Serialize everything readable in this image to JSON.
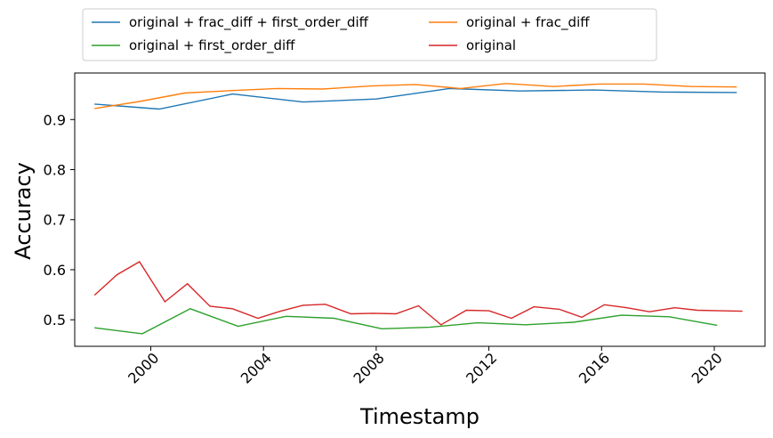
{
  "chart_data": {
    "type": "line",
    "xlabel": "Timestamp",
    "ylabel": "Accuracy",
    "xlim": [
      1997.3,
      2021.8
    ],
    "ylim": [
      0.447,
      0.993
    ],
    "x_ticks": [
      2000,
      2004,
      2008,
      2012,
      2016,
      2020
    ],
    "x_tick_labels": [
      "2000",
      "2004",
      "2008",
      "2012",
      "2016",
      "2020"
    ],
    "y_ticks": [
      0.5,
      0.6,
      0.7,
      0.8,
      0.9
    ],
    "y_tick_labels": [
      "0.5",
      "0.6",
      "0.7",
      "0.8",
      "0.9"
    ],
    "grid": false,
    "legend_position": "top, above plot, 2 columns",
    "series": [
      {
        "name": "original + frac_diff + first_order_diff",
        "color": "#1f77b4",
        "x": [
          1998.0,
          2000.3,
          2002.9,
          2005.4,
          2008.0,
          2010.6,
          2013.1,
          2015.7,
          2018.2,
          2020.8
        ],
        "y": [
          0.931,
          0.921,
          0.951,
          0.935,
          0.941,
          0.962,
          0.957,
          0.959,
          0.955,
          0.954
        ]
      },
      {
        "name": "original + frac_diff",
        "color": "#ff7f0e",
        "x": [
          1998.0,
          1999.6,
          2001.2,
          2002.9,
          2004.5,
          2006.1,
          2007.8,
          2009.4,
          2011.0,
          2012.6,
          2014.3,
          2015.9,
          2017.5,
          2019.2,
          2020.8
        ],
        "y": [
          0.922,
          0.936,
          0.953,
          0.958,
          0.962,
          0.961,
          0.967,
          0.97,
          0.962,
          0.972,
          0.966,
          0.971,
          0.971,
          0.966,
          0.965
        ]
      },
      {
        "name": "original + first_order_diff",
        "color": "#2ca02c",
        "x": [
          1998.0,
          1999.7,
          2001.4,
          2003.1,
          2004.8,
          2006.5,
          2008.2,
          2009.9,
          2011.6,
          2013.3,
          2015.0,
          2016.7,
          2018.4,
          2020.1
        ],
        "y": [
          0.484,
          0.472,
          0.522,
          0.487,
          0.507,
          0.503,
          0.482,
          0.485,
          0.494,
          0.49,
          0.495,
          0.509,
          0.506,
          0.489
        ]
      },
      {
        "name": "original",
        "color": "#d62728",
        "x": [
          1998.0,
          1998.8,
          1999.6,
          2000.5,
          2001.3,
          2002.1,
          2002.9,
          2003.8,
          2004.6,
          2005.4,
          2006.2,
          2007.1,
          2007.9,
          2008.7,
          2009.5,
          2010.3,
          2011.2,
          2012.0,
          2012.8,
          2013.6,
          2014.5,
          2015.3,
          2016.1,
          2016.9,
          2017.7,
          2018.6,
          2019.4,
          2020.2,
          2021.0
        ],
        "y": [
          0.549,
          0.59,
          0.616,
          0.536,
          0.572,
          0.527,
          0.522,
          0.503,
          0.517,
          0.529,
          0.531,
          0.512,
          0.513,
          0.512,
          0.528,
          0.49,
          0.519,
          0.518,
          0.503,
          0.526,
          0.521,
          0.505,
          0.53,
          0.524,
          0.516,
          0.524,
          0.519,
          0.518,
          0.517
        ]
      }
    ]
  }
}
